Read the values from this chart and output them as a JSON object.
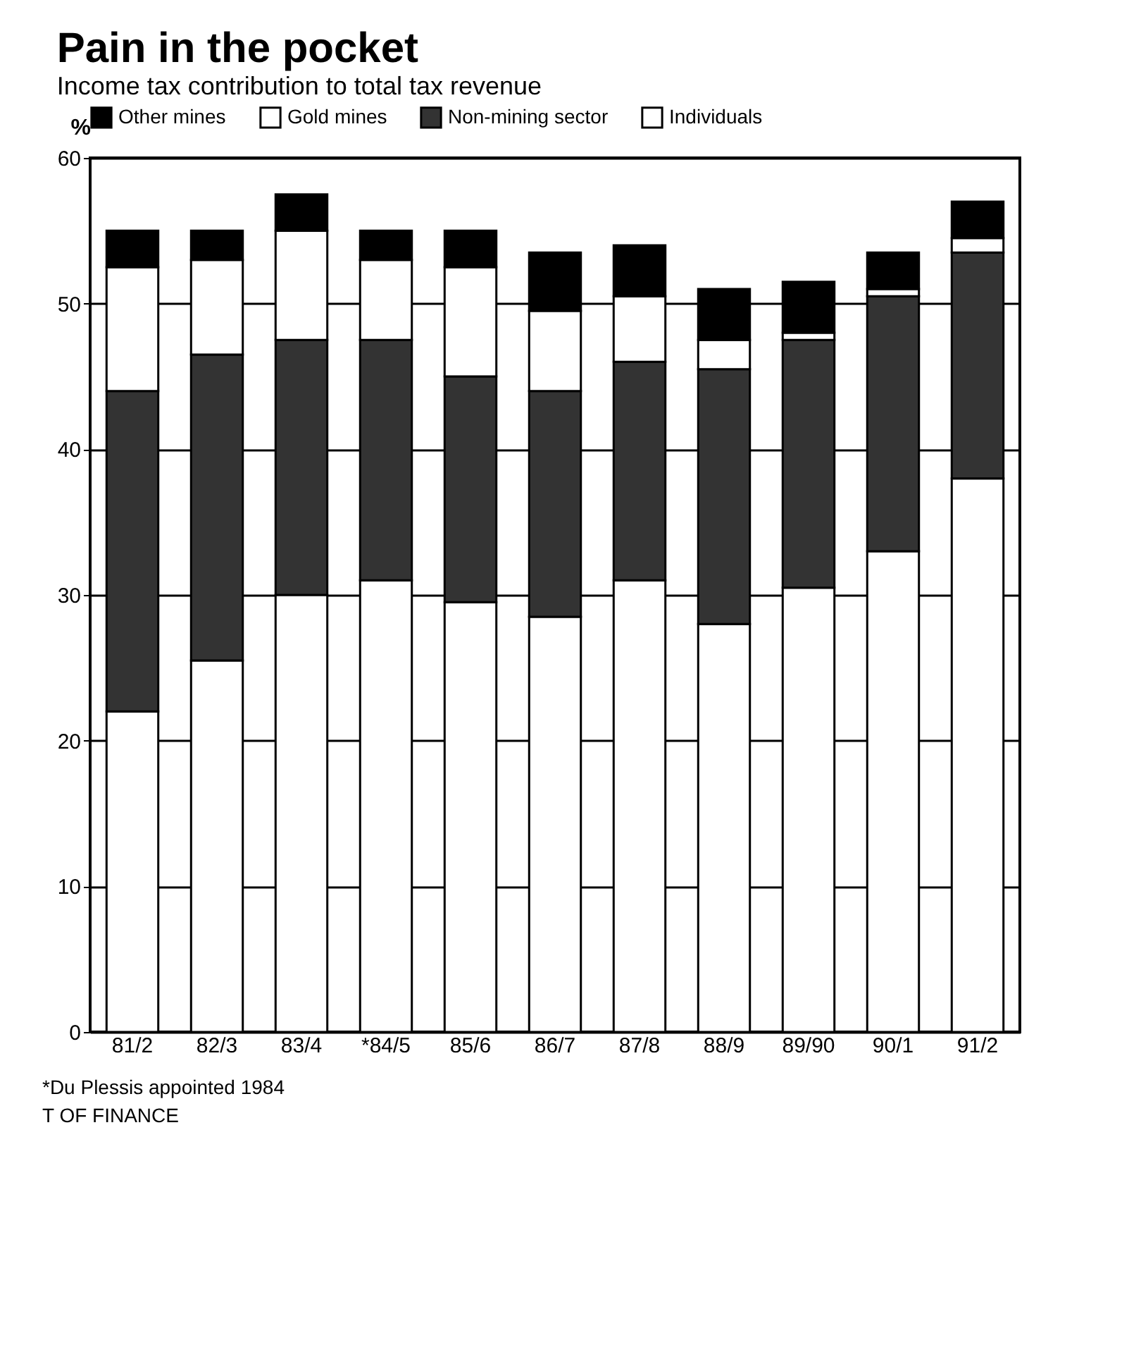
{
  "chart_data": {
    "type": "bar",
    "title": "Pain in the pocket",
    "subtitle": "Income tax contribution to total tax revenue",
    "ylabel": "%",
    "categories": [
      "81/2",
      "82/3",
      "83/4",
      "*84/5",
      "85/6",
      "86/7",
      "87/8",
      "88/9",
      "89/90",
      "90/1",
      "91/2"
    ],
    "stacked": true,
    "series": [
      {
        "name": "Individuals",
        "color": "#ffffff",
        "values": [
          22,
          25.5,
          30,
          31,
          29.5,
          28.5,
          31,
          28,
          30.5,
          33,
          38
        ]
      },
      {
        "name": "Non-mining sector",
        "color": "#333333",
        "values": [
          22,
          21,
          17.5,
          16.5,
          15.5,
          15.5,
          15,
          17.5,
          17,
          17.5,
          15.5
        ]
      },
      {
        "name": "Gold mines",
        "color": "#ffffff",
        "values": [
          8.5,
          6.5,
          7.5,
          5.5,
          7.5,
          5.5,
          4.5,
          2,
          0.5,
          0.5,
          1
        ]
      },
      {
        "name": "Other mines",
        "color": "#000000",
        "values": [
          2.5,
          2,
          2.5,
          2,
          2.5,
          4,
          3.5,
          3.5,
          3.5,
          2.5,
          2.5
        ]
      }
    ],
    "ylim": [
      0,
      60
    ],
    "yticks": [
      0,
      10,
      20,
      30,
      40,
      50,
      60
    ],
    "grid": "y",
    "legend": "top",
    "annotations": [
      "*Du Plessis appointed 1984",
      "T OF FINANCE"
    ]
  }
}
